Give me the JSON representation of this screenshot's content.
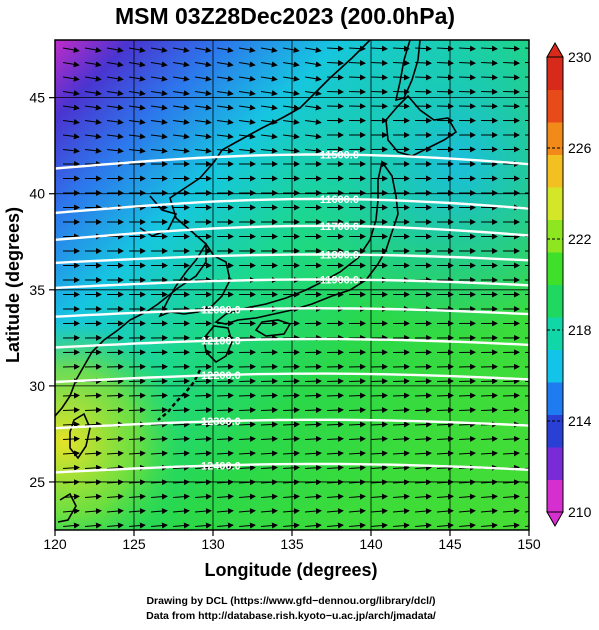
{
  "title": "MSM 03Z28Dec2023 (200.0hPa)",
  "x_axis": {
    "label": "Longitude (degrees)",
    "ticks": [
      "120",
      "125",
      "130",
      "135",
      "140",
      "145",
      "150"
    ],
    "range": [
      120,
      150
    ]
  },
  "y_axis": {
    "label": "Latitude  (degrees)",
    "ticks": [
      "25",
      "30",
      "35",
      "40",
      "45"
    ],
    "range": [
      22.5,
      48
    ]
  },
  "colorbar": {
    "ticks": [
      "210",
      "214",
      "218",
      "222",
      "226",
      "230"
    ],
    "range": [
      210,
      230
    ],
    "colors": [
      "#d62fd0",
      "#7a2bd8",
      "#2a3fd4",
      "#1e7cf0",
      "#12c4e8",
      "#10d6a8",
      "#1fd860",
      "#3ee02a",
      "#8ee620",
      "#d4e628",
      "#f2c020",
      "#f28a1a",
      "#e84a1a",
      "#d82a1a"
    ]
  },
  "contours": [
    {
      "label": "11500.0",
      "lat": 41.0
    },
    {
      "label": "11600.0",
      "lat": 39.0
    },
    {
      "label": "11700.0",
      "lat": 37.6
    },
    {
      "label": "11800.0",
      "lat": 36.4
    },
    {
      "label": "11900.0",
      "lat": 35.1
    },
    {
      "label": "12000.0",
      "lat": 33.6
    },
    {
      "label": "12100.0",
      "lat": 32.0
    },
    {
      "label": "12200.0",
      "lat": 30.2
    },
    {
      "label": "12300.0",
      "lat": 27.8
    },
    {
      "label": "12400.0",
      "lat": 25.5
    }
  ],
  "credits": {
    "line1": "Drawing by DCL (https://www.gfd−dennou.org/library/dcl/)",
    "line2": "Data from http://database.rish.kyoto−u.ac.jp/arch/jmadata/"
  }
}
